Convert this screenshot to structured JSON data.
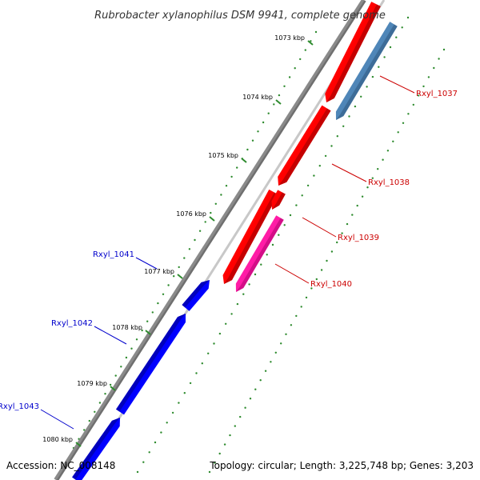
{
  "title": "Rubrobacter xylanophilus DSM 9941, complete genome",
  "accession": "Accession: NC_008148",
  "summary": "Topology: circular; Length: 3,225,748 bp; Genes: 3,203",
  "colors": {
    "backbone": "#808080",
    "forward_gene": "#ff0000",
    "reverse_gene": "#0000ff",
    "blue_steel_gene": "#4f86b8",
    "pink_gene": "#ff1ca6",
    "tick": "#2e8b2e",
    "label_forward": "#cc0000",
    "label_reverse": "#0000cc"
  },
  "ticks": [
    {
      "label": "1073 kbp"
    },
    {
      "label": "1074 kbp"
    },
    {
      "label": "1075 kbp"
    },
    {
      "label": "1076 kbp"
    },
    {
      "label": "1077 kbp"
    },
    {
      "label": "1078 kbp"
    },
    {
      "label": "1079 kbp"
    },
    {
      "label": "1080 kbp"
    }
  ],
  "genes": [
    {
      "id": "Rxyl_1037",
      "strand": "forward",
      "track": "outer-forward",
      "color": "#ff0000"
    },
    {
      "id": "Rxyl_1037",
      "strand": "forward",
      "track": "cds",
      "color": "#4f86b8"
    },
    {
      "id": "Rxyl_1038",
      "strand": "forward",
      "track": "outer-forward",
      "color": "#ff0000"
    },
    {
      "id": "Rxyl_1039",
      "strand": "forward",
      "track": "outer-forward",
      "color": "#ff0000"
    },
    {
      "id": "Rxyl_1040",
      "strand": "forward",
      "track": "cds",
      "color": "#ff1ca6"
    },
    {
      "id": "Rxyl_1041",
      "strand": "reverse",
      "track": "reverse",
      "color": "#0000ff"
    },
    {
      "id": "Rxyl_1042",
      "strand": "reverse",
      "track": "reverse",
      "color": "#0000ff"
    },
    {
      "id": "Rxyl_1043",
      "strand": "reverse",
      "track": "reverse",
      "color": "#0000ff"
    }
  ],
  "labels": [
    {
      "text": "Rxyl_1037",
      "side": "right"
    },
    {
      "text": "Rxyl_1038",
      "side": "right"
    },
    {
      "text": "Rxyl_1039",
      "side": "right"
    },
    {
      "text": "Rxyl_1040",
      "side": "right"
    },
    {
      "text": "Rxyl_1041",
      "side": "left"
    },
    {
      "text": "Rxyl_1042",
      "side": "left"
    },
    {
      "text": "Rxyl_1043",
      "side": "left"
    }
  ]
}
